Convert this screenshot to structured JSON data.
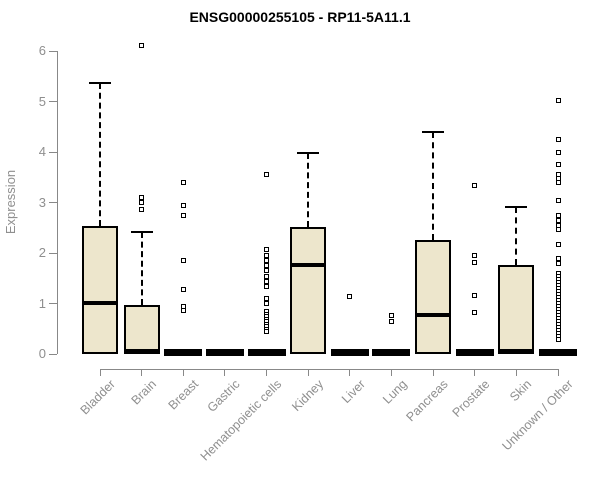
{
  "chart_data": {
    "type": "boxplot",
    "title": "ENSG00000255105 - RP11-5A11.1",
    "ylabel": "Expression",
    "xlabel": "",
    "ylim": [
      0,
      6
    ],
    "yticks": [
      0,
      1,
      2,
      3,
      4,
      5,
      6
    ],
    "grid": false,
    "legend": "none",
    "colors": {
      "box_fill": "#EDE6CC",
      "box_stroke": "#000000",
      "axis": "#888888",
      "tick_label": "#8F8F8F",
      "title": "#000000"
    },
    "categories": [
      "Bladder",
      "Brain",
      "Breast",
      "Gastric",
      "Hematopoietic cells",
      "Kidney",
      "Liver",
      "Lung",
      "Pancreas",
      "Prostate",
      "Skin",
      "Unknown / Other"
    ],
    "boxes": [
      {
        "category": "Bladder",
        "whisker_low": 0,
        "q1": 0,
        "median": 1.01,
        "q3": 2.53,
        "whisker_high": 5.37,
        "outliers": []
      },
      {
        "category": "Brain",
        "whisker_low": 0,
        "q1": 0,
        "median": 0.05,
        "q3": 0.97,
        "whisker_high": 2.42,
        "outliers": [
          6.1,
          3.1,
          3.0,
          2.87
        ]
      },
      {
        "category": "Breast",
        "whisker_low": 0,
        "q1": 0,
        "median": 0.02,
        "q3": 0.05,
        "whisker_high": 0.05,
        "outliers": [
          3.39,
          2.95,
          2.75,
          1.86,
          1.27,
          0.95,
          0.87
        ]
      },
      {
        "category": "Gastric",
        "whisker_low": 0,
        "q1": 0,
        "median": 0.02,
        "q3": 0.05,
        "whisker_high": 0.05,
        "outliers": []
      },
      {
        "category": "Hematopoietic cells",
        "whisker_low": 0,
        "q1": 0,
        "median": 0.02,
        "q3": 0.05,
        "whisker_high": 0.05,
        "outliers": [
          3.56,
          2.06,
          1.96,
          1.86,
          1.76,
          1.66,
          1.53,
          1.43,
          1.33,
          1.1,
          1.0,
          0.84,
          0.79,
          0.74,
          0.69,
          0.64,
          0.59,
          0.54,
          0.49,
          0.44
        ]
      },
      {
        "category": "Kidney",
        "whisker_low": 0,
        "q1": 0,
        "median": 1.76,
        "q3": 2.51,
        "whisker_high": 3.98,
        "outliers": []
      },
      {
        "category": "Liver",
        "whisker_low": 0,
        "q1": 0,
        "median": 0.02,
        "q3": 0.05,
        "whisker_high": 0.05,
        "outliers": [
          1.13
        ]
      },
      {
        "category": "Lung",
        "whisker_low": 0,
        "q1": 0,
        "median": 0.02,
        "q3": 0.05,
        "whisker_high": 0.05,
        "outliers": [
          0.77,
          0.65
        ]
      },
      {
        "category": "Pancreas",
        "whisker_low": 0,
        "q1": 0,
        "median": 0.77,
        "q3": 2.26,
        "whisker_high": 4.4,
        "outliers": []
      },
      {
        "category": "Prostate",
        "whisker_low": 0,
        "q1": 0,
        "median": 0.02,
        "q3": 0.05,
        "whisker_high": 0.05,
        "outliers": [
          3.33,
          1.96,
          1.82,
          1.15,
          0.83
        ]
      },
      {
        "category": "Skin",
        "whisker_low": 0,
        "q1": 0,
        "median": 0.05,
        "q3": 1.76,
        "whisker_high": 2.91,
        "outliers": []
      },
      {
        "category": "Unknown / Other",
        "whisker_low": 0,
        "q1": 0,
        "median": 0.02,
        "q3": 0.05,
        "whisker_high": 0.05,
        "outliers": [
          5.01,
          4.24,
          3.99,
          3.76,
          3.56,
          3.48,
          3.39,
          3.03,
          2.75,
          2.65,
          2.55,
          2.46,
          2.16,
          1.89,
          1.8,
          1.6,
          1.54,
          1.48,
          1.42,
          1.36,
          1.3,
          1.24,
          1.18,
          1.12,
          1.06,
          1.0,
          0.94,
          0.88,
          0.82,
          0.76,
          0.7,
          0.64,
          0.58,
          0.52,
          0.46,
          0.4,
          0.34,
          0.28
        ]
      }
    ]
  }
}
